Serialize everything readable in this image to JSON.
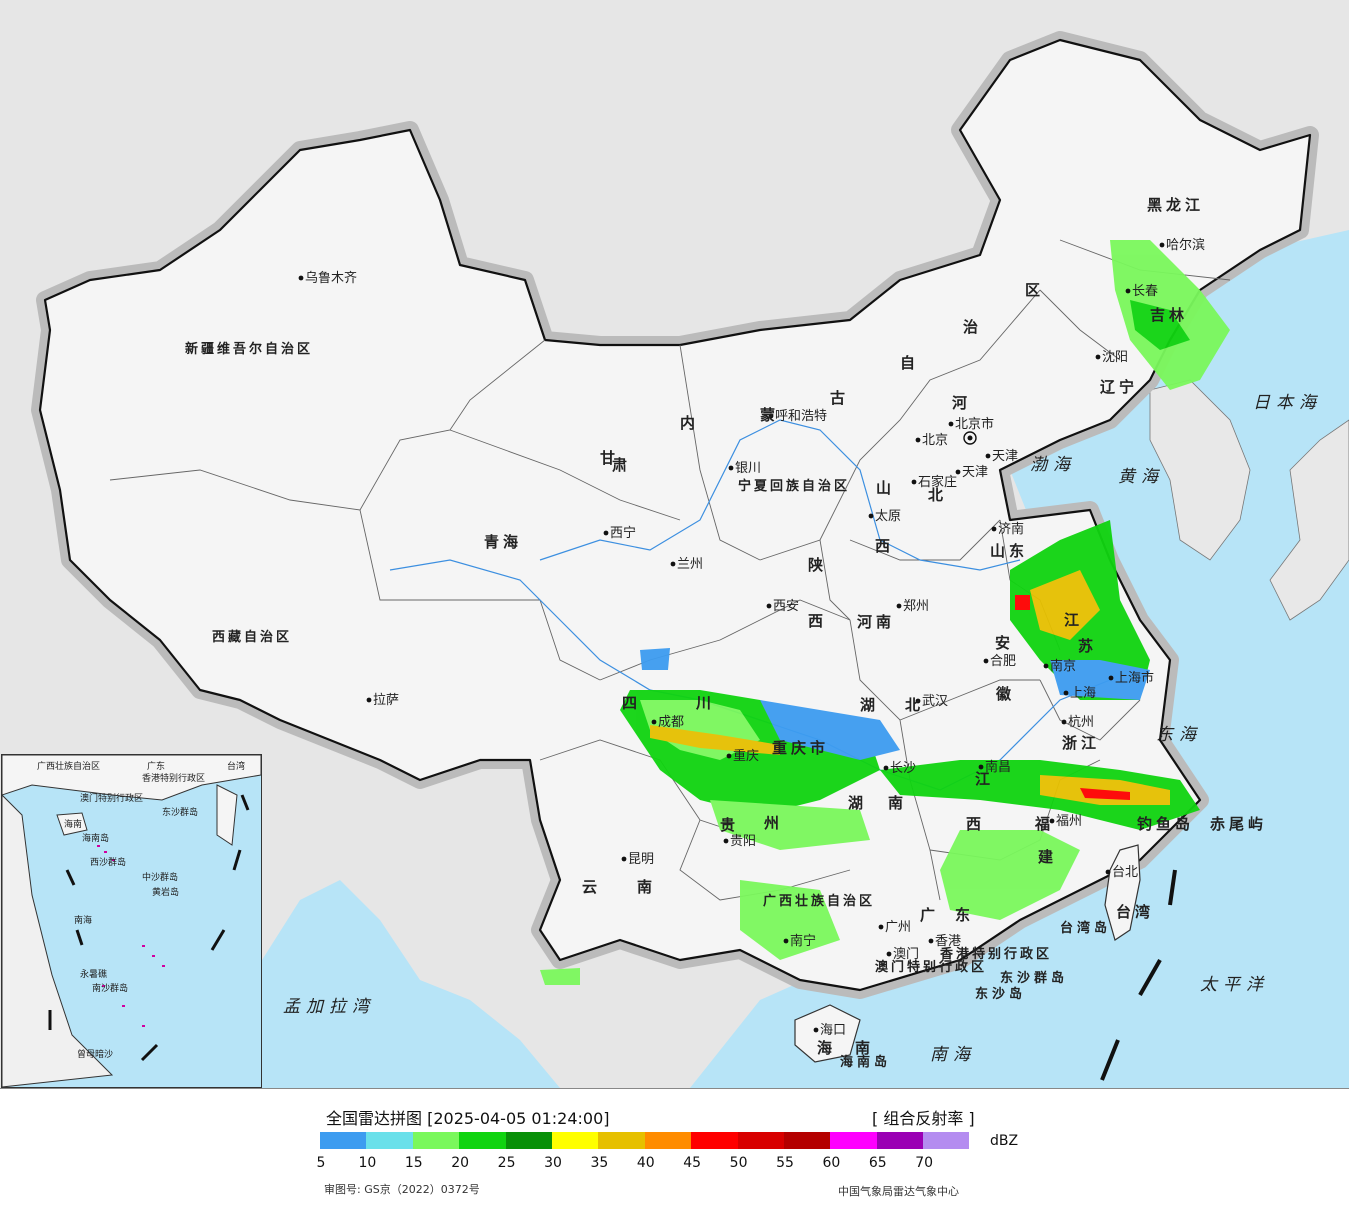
{
  "map": {
    "city_labels": [
      "乌鲁木齐",
      "拉萨",
      "西宁",
      "兰州",
      "银川",
      "呼和浩特",
      "北京",
      "北京市",
      "天津",
      "天津",
      "石家庄",
      "太原",
      "济南",
      "郑州",
      "西安",
      "武汉",
      "合肥",
      "南京",
      "上海",
      "上海市",
      "杭州",
      "南昌",
      "长沙",
      "福州",
      "重庆",
      "成都",
      "贵阳",
      "昆明",
      "南宁",
      "广州",
      "澳门",
      "香港",
      "海口",
      "台北",
      "哈尔滨",
      "长春",
      "沈阳"
    ],
    "province_labels": [
      "新疆维吾尔自治区",
      "西藏自治区",
      "青海",
      "甘",
      "肃",
      "宁夏回族自治区",
      "内",
      "蒙",
      "古",
      "自",
      "治",
      "区",
      "黑龙江",
      "吉林",
      "辽宁",
      "河",
      "北",
      "山",
      "西",
      "山东",
      "河南",
      "陕",
      "西",
      "四",
      "川",
      "重庆市",
      "湖",
      "北",
      "湖",
      "南",
      "安",
      "徽",
      "江",
      "苏",
      "浙江",
      "江",
      "西",
      "福",
      "建",
      "贵",
      "州",
      "云",
      "南",
      "广西壮族自治区",
      "广",
      "东",
      "海",
      "南",
      "台湾",
      "台湾岛",
      "海南岛",
      "香港特别行政区",
      "澳门特别行政区",
      "钓鱼岛",
      "赤尾屿",
      "东沙群岛",
      "东沙岛"
    ],
    "sea_labels": [
      "渤海",
      "黄海",
      "东海",
      "南海",
      "日本海",
      "太平洋",
      "孟加拉湾"
    ],
    "inset_labels": [
      "广西壮族自治区",
      "广东",
      "海南",
      "台湾",
      "香港特别行政区",
      "澳门特别行政区",
      "东沙群岛",
      "海南岛",
      "西沙群岛",
      "中沙群岛",
      "黄岩岛",
      "南海",
      "南沙群岛",
      "永暑礁",
      "曾母暗沙"
    ]
  },
  "legend": {
    "title": "全国雷达拼图 [2025-04-05 01:24:00]",
    "product": "[ 组合反射率 ]",
    "unit": "dBZ",
    "ticks": [
      "5",
      "10",
      "15",
      "20",
      "25",
      "30",
      "35",
      "40",
      "45",
      "50",
      "55",
      "60",
      "65",
      "70"
    ],
    "colors": [
      "#3d9cf0",
      "#6ae0ea",
      "#7af85c",
      "#10d410",
      "#089008",
      "#ffff00",
      "#e6c000",
      "#ff8c00",
      "#ff0000",
      "#d80000",
      "#b40000",
      "#ff00ff",
      "#9a00b4",
      "#b48cf0"
    ],
    "approval": "审图号: GS京（2022）0372号",
    "credit": "中国气象局雷达气象中心"
  }
}
